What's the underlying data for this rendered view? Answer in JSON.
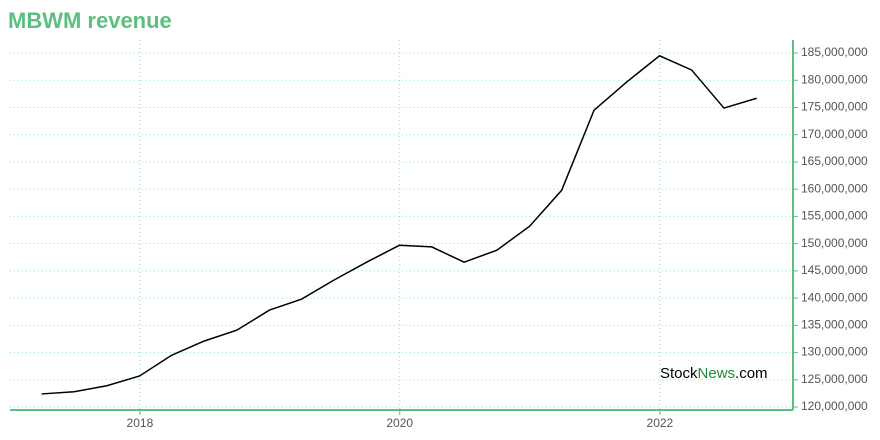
{
  "chart_data": {
    "type": "line",
    "title": "MBWM revenue",
    "x": [
      "2017-03-31",
      "2017-06-30",
      "2017-09-30",
      "2017-12-31",
      "2018-03-31",
      "2018-06-30",
      "2018-09-30",
      "2018-12-31",
      "2019-03-31",
      "2019-06-30",
      "2019-09-30",
      "2019-12-31",
      "2020-03-31",
      "2020-06-30",
      "2020-09-30",
      "2020-12-31",
      "2021-03-31",
      "2021-06-30",
      "2021-09-30",
      "2021-12-31",
      "2022-03-31",
      "2022-06-30",
      "2022-09-30"
    ],
    "series": [
      {
        "name": "MBWM revenue",
        "color": "#000000",
        "values": [
          122400000,
          122800000,
          123900000,
          125700000,
          129500000,
          132100000,
          134100000,
          137800000,
          139800000,
          143300000,
          146600000,
          149700000,
          149400000,
          146600000,
          148800000,
          153200000,
          159800000,
          174500000,
          179700000,
          184500000,
          181900000,
          174900000,
          176700000
        ]
      }
    ],
    "xlim": [
      "2017-01-01",
      "2023-01-10"
    ],
    "xticks": [
      {
        "value": "2018-01-01",
        "label": "2018"
      },
      {
        "value": "2020-01-01",
        "label": "2020"
      },
      {
        "value": "2022-01-01",
        "label": "2022"
      }
    ],
    "ylim": [
      119450000,
      187400000
    ],
    "yticks": [
      {
        "value": 120000000,
        "label": "120,000,000"
      },
      {
        "value": 125000000,
        "label": "125,000,000"
      },
      {
        "value": 130000000,
        "label": "130,000,000"
      },
      {
        "value": 135000000,
        "label": "135,000,000"
      },
      {
        "value": 140000000,
        "label": "140,000,000"
      },
      {
        "value": 145000000,
        "label": "145,000,000"
      },
      {
        "value": 150000000,
        "label": "150,000,000"
      },
      {
        "value": 155000000,
        "label": "155,000,000"
      },
      {
        "value": 160000000,
        "label": "160,000,000"
      },
      {
        "value": 165000000,
        "label": "165,000,000"
      },
      {
        "value": 170000000,
        "label": "170,000,000"
      },
      {
        "value": 175000000,
        "label": "175,000,000"
      },
      {
        "value": 180000000,
        "label": "180,000,000"
      },
      {
        "value": 185000000,
        "label": "185,000,000"
      }
    ],
    "grid": true,
    "watermark": [
      "Stock",
      "News",
      ".com"
    ]
  }
}
